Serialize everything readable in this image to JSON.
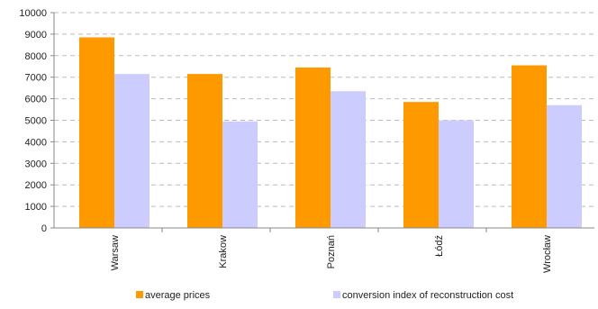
{
  "chart_data": {
    "type": "bar",
    "categories": [
      "Warsaw",
      "Krakow",
      "Poznań",
      "Łódź",
      "Wrocław"
    ],
    "series": [
      {
        "name": "average prices",
        "values": [
          8850,
          7150,
          7450,
          5850,
          7550
        ],
        "color": "#FF9900"
      },
      {
        "name": "conversion index of reconstruction cost",
        "values": [
          7150,
          4950,
          6350,
          5000,
          5700
        ],
        "color": "#CCCCFF"
      }
    ],
    "yticks": [
      0,
      1000,
      2000,
      3000,
      4000,
      5000,
      6000,
      7000,
      8000,
      9000,
      10000
    ],
    "ylim": [
      0,
      10000
    ],
    "grid": true,
    "gridColor": "#BBBBBB",
    "axisColor": "#888888",
    "legend": "bottom"
  }
}
